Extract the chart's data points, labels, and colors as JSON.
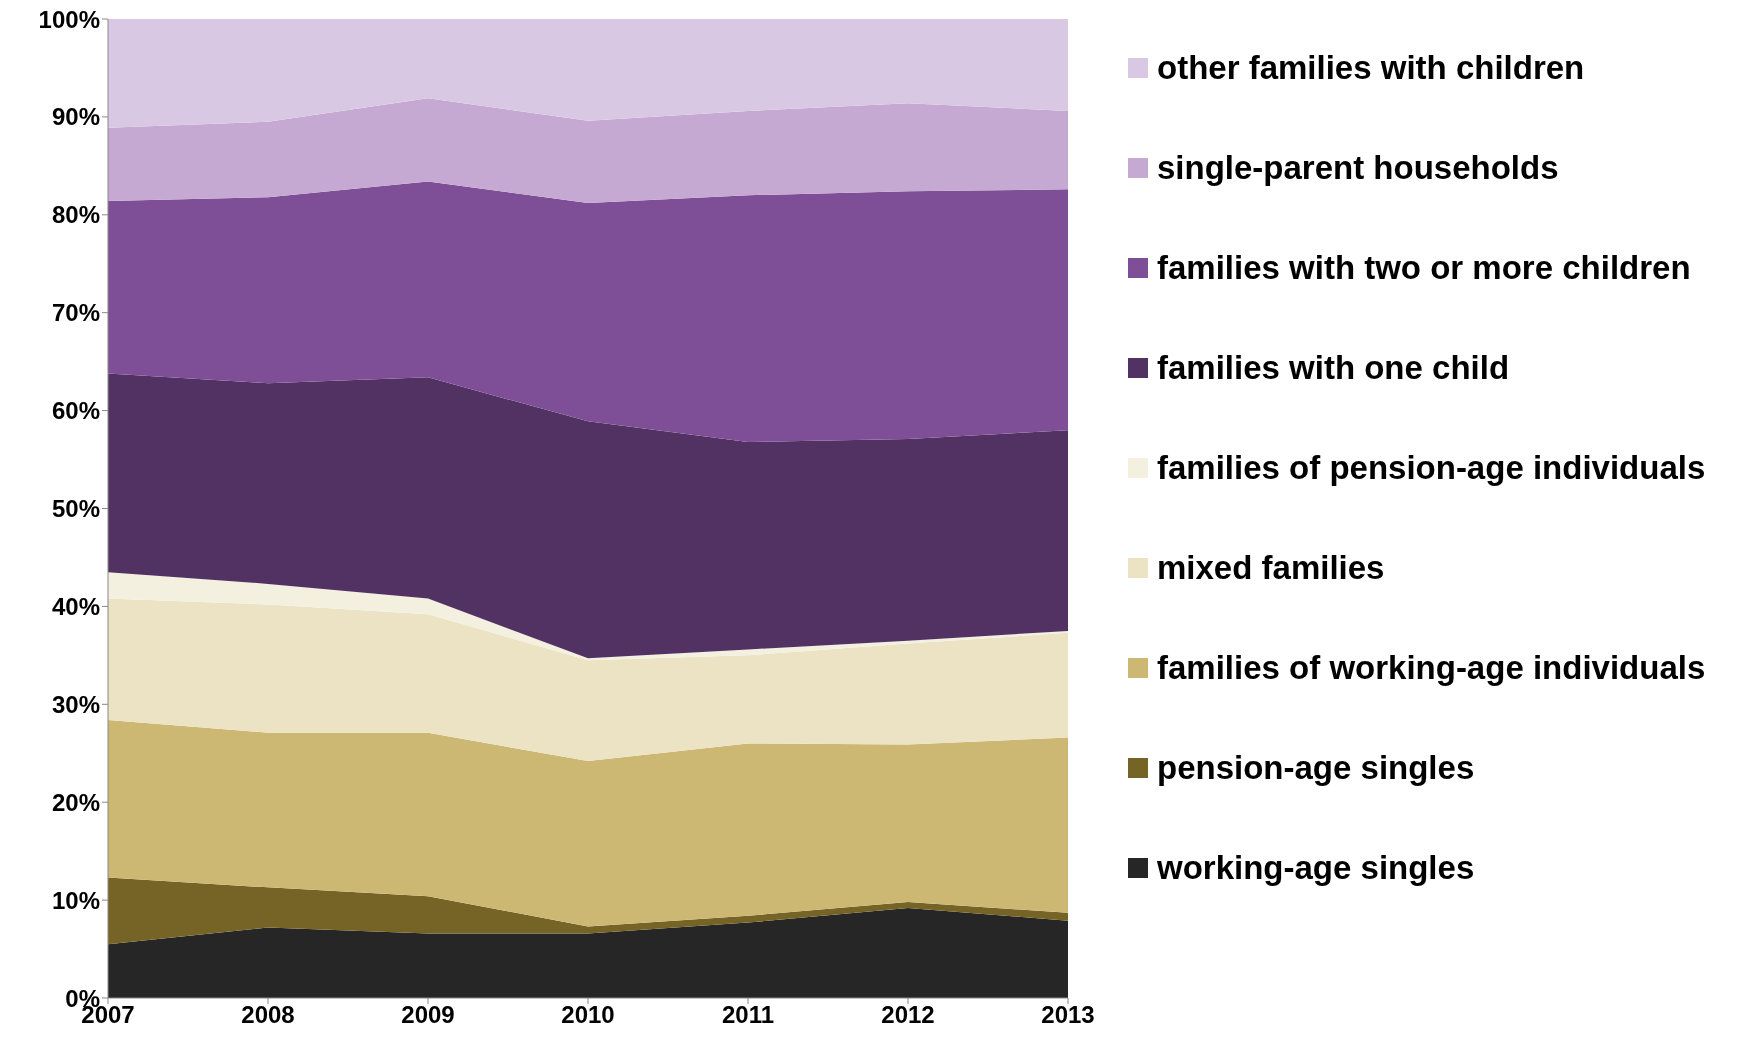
{
  "chart_data": {
    "type": "area",
    "stacked": true,
    "x": [
      2007,
      2008,
      2009,
      2010,
      2011,
      2012,
      2013
    ],
    "xlim": [
      2007,
      2013
    ],
    "xticks": [
      2007,
      2008,
      2009,
      2010,
      2011,
      2012,
      2013
    ],
    "ylim": [
      0,
      100
    ],
    "yticks": [
      {
        "value": 0,
        "label": "0%"
      },
      {
        "value": 10,
        "label": "10%"
      },
      {
        "value": 20,
        "label": "20%"
      },
      {
        "value": 30,
        "label": "30%"
      },
      {
        "value": 40,
        "label": "40%"
      },
      {
        "value": 50,
        "label": "50%"
      },
      {
        "value": 60,
        "label": "60%"
      },
      {
        "value": 70,
        "label": "70%"
      },
      {
        "value": 80,
        "label": "80%"
      },
      {
        "value": 90,
        "label": "90%"
      },
      {
        "value": 100,
        "label": "100%"
      }
    ],
    "grid": false,
    "legend": "right",
    "series": [
      {
        "name": "working-age singles",
        "color": "#262626",
        "values": [
          5.5,
          7.2,
          6.6,
          6.6,
          7.7,
          9.2,
          7.9
        ]
      },
      {
        "name": "pension-age singles",
        "color": "#766427",
        "values": [
          6.8,
          4.1,
          3.8,
          0.7,
          0.7,
          0.6,
          0.8
        ]
      },
      {
        "name": "families of working-age individuals",
        "color": "#cdb873",
        "values": [
          16.1,
          15.8,
          16.7,
          16.9,
          17.6,
          16.1,
          17.9
        ]
      },
      {
        "name": "mixed families",
        "color": "#ebe3c4",
        "values": [
          12.4,
          13.1,
          12.1,
          10.3,
          9.0,
          10.3,
          10.7
        ]
      },
      {
        "name": "families of pension-age individuals",
        "color": "#f4f0e0",
        "values": [
          2.7,
          2.1,
          1.6,
          0.2,
          0.6,
          0.3,
          0.2
        ]
      },
      {
        "name": "families with one child",
        "color": "#523262",
        "values": [
          20.3,
          20.5,
          22.6,
          24.2,
          21.2,
          20.6,
          20.5
        ]
      },
      {
        "name": "families with two or more children",
        "color": "#7e4f96",
        "values": [
          17.6,
          19.0,
          20.0,
          22.3,
          25.2,
          25.3,
          24.6
        ]
      },
      {
        "name": "single-parent households",
        "color": "#c5a9d3",
        "values": [
          7.5,
          7.7,
          8.5,
          8.4,
          8.6,
          9.0,
          8.0
        ]
      },
      {
        "name": "other families with children",
        "color": "#d9c8e4",
        "values": [
          11.1,
          10.5,
          8.1,
          10.4,
          9.4,
          8.6,
          9.4
        ]
      }
    ]
  }
}
